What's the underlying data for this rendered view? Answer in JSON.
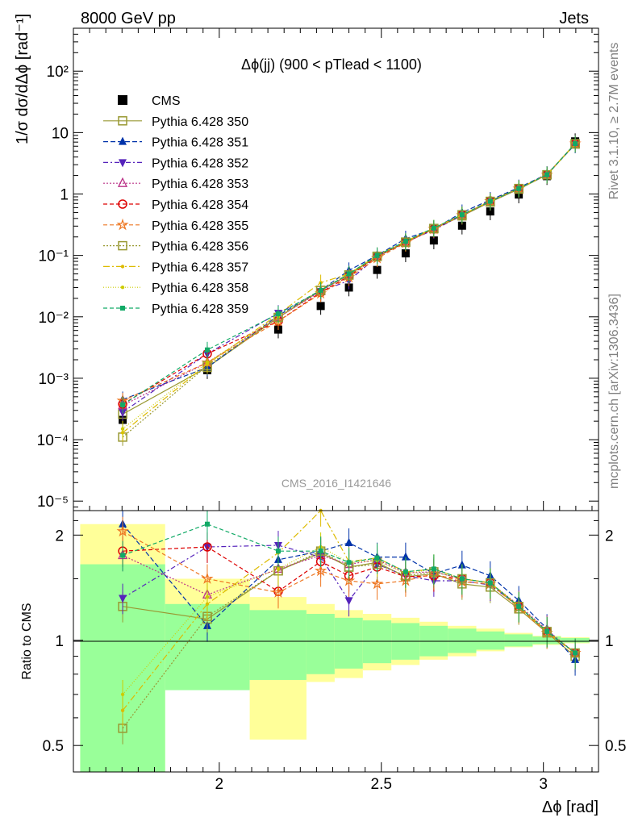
{
  "header": {
    "left": "8000 GeV pp",
    "right": "Jets",
    "side_top": "Rivet 3.1.10, ≥ 2.7M events",
    "side_bottom": "mcplots.cern.ch [arXiv:1306.3436]"
  },
  "chart_data": [
    {
      "type": "scatter",
      "panel": "main",
      "title": "Δϕ(jj) (900 < pTlead <  1100)",
      "ylabel": "1/σ dσ/dΔϕ [rad⁻¹]",
      "xlabel": "Δϕ [rad]",
      "watermark": "CMS_2016_I1421646",
      "yscale": "log",
      "ylim": [
        7e-06,
        500
      ],
      "xlim": [
        1.55,
        3.17
      ],
      "ytick_labels": [
        "10⁻⁵",
        "10⁻⁴",
        "10⁻³",
        "10⁻²",
        "10⁻¹",
        "1",
        "10",
        "10²"
      ],
      "legend_position": "top-left",
      "x": [
        1.702,
        1.963,
        2.182,
        2.313,
        2.4,
        2.487,
        2.575,
        2.662,
        2.749,
        2.836,
        2.924,
        3.011,
        3.098
      ],
      "series": [
        {
          "name": "CMS",
          "color": "#000000",
          "marker": "square-filled",
          "values": [
            0.00021,
            0.00135,
            0.0062,
            0.015,
            0.03,
            0.058,
            0.108,
            0.175,
            0.305,
            0.52,
            0.98,
            1.95,
            7.2
          ]
        },
        {
          "name": "Pythia 6.428 350",
          "color": "#999933",
          "marker": "square-open",
          "dash": "solid",
          "values": [
            0.00026,
            0.0015,
            0.0097,
            0.027,
            0.048,
            0.097,
            0.163,
            0.272,
            0.44,
            0.74,
            1.2,
            2.05,
            6.5
          ]
        },
        {
          "name": "Pythia 6.428 351",
          "color": "#0033aa",
          "marker": "triangle-up",
          "dash": "6,3",
          "values": [
            0.00045,
            0.0015,
            0.0105,
            0.027,
            0.057,
            0.1,
            0.187,
            0.27,
            0.5,
            0.8,
            1.27,
            2.1,
            6.4
          ]
        },
        {
          "name": "Pythia 6.428 352",
          "color": "#5522bb",
          "marker": "triangle-down",
          "dash": "6,3,2,3",
          "values": [
            0.00028,
            0.0025,
            0.0115,
            0.026,
            0.039,
            0.095,
            0.165,
            0.26,
            0.45,
            0.75,
            1.22,
            2.05,
            6.6
          ]
        },
        {
          "name": "Pythia 6.428 353",
          "color": "#bb3388",
          "marker": "triangle-open",
          "dash": "2,2",
          "values": [
            0.00036,
            0.0018,
            0.0098,
            0.026,
            0.05,
            0.098,
            0.168,
            0.275,
            0.46,
            0.76,
            1.23,
            2.07,
            6.6
          ]
        },
        {
          "name": "Pythia 6.428 354",
          "color": "#dd0000",
          "marker": "circle-open",
          "dash": "5,3",
          "values": [
            0.00038,
            0.0025,
            0.0085,
            0.025,
            0.046,
            0.095,
            0.165,
            0.27,
            0.46,
            0.77,
            1.23,
            2.06,
            6.6
          ]
        },
        {
          "name": "Pythia 6.428 355",
          "color": "#ee7722",
          "marker": "star",
          "dash": "5,3",
          "values": [
            0.00043,
            0.0018,
            0.0085,
            0.024,
            0.044,
            0.09,
            0.16,
            0.27,
            0.45,
            0.76,
            1.22,
            2.05,
            6.6
          ]
        },
        {
          "name": "Pythia 6.428 356",
          "color": "#999933",
          "marker": "square-open",
          "dash": "2,2",
          "values": [
            0.00011,
            0.0016,
            0.0098,
            0.027,
            0.048,
            0.096,
            0.165,
            0.275,
            0.46,
            0.76,
            1.23,
            2.06,
            6.6
          ]
        },
        {
          "name": "Pythia 6.428 357",
          "color": "#ddbb00",
          "marker": "dot",
          "dash": "8,3,2,3",
          "values": [
            0.00013,
            0.0017,
            0.011,
            0.036,
            0.05,
            0.1,
            0.17,
            0.28,
            0.46,
            0.76,
            1.23,
            2.06,
            6.6
          ]
        },
        {
          "name": "Pythia 6.428 358",
          "color": "#cccc00",
          "marker": "dot",
          "dash": "1,2",
          "values": [
            0.00015,
            0.0018,
            0.01,
            0.028,
            0.05,
            0.098,
            0.168,
            0.28,
            0.46,
            0.76,
            1.23,
            2.06,
            6.6
          ]
        },
        {
          "name": "Pythia 6.428 359",
          "color": "#11aa66",
          "marker": "square-filled-small",
          "dash": "5,3",
          "values": [
            0.00037,
            0.0029,
            0.0112,
            0.027,
            0.05,
            0.1,
            0.17,
            0.28,
            0.46,
            0.76,
            1.23,
            2.06,
            6.6
          ]
        }
      ]
    },
    {
      "type": "scatter",
      "panel": "ratio",
      "ylabel": "Ratio to CMS",
      "xlabel": "Δϕ [rad]",
      "yscale": "log",
      "ylim": [
        0.42,
        2.35
      ],
      "xlim": [
        1.55,
        3.17
      ],
      "ytick_labels": [
        "0.5",
        "1",
        "2"
      ],
      "xtick_labels": [
        "2",
        "2.5",
        "3"
      ],
      "reference_line": 1,
      "bands": {
        "edges": [
          1.571,
          1.833,
          2.094,
          2.269,
          2.356,
          2.443,
          2.531,
          2.618,
          2.705,
          2.793,
          2.88,
          2.967,
          3.054,
          3.142
        ],
        "green_low": [
          0.35,
          0.72,
          0.77,
          0.8,
          0.83,
          0.86,
          0.88,
          0.9,
          0.92,
          0.94,
          0.96,
          0.975,
          0.985
        ],
        "green_high": [
          1.65,
          1.27,
          1.22,
          1.19,
          1.16,
          1.14,
          1.12,
          1.1,
          1.08,
          1.06,
          1.04,
          1.025,
          1.015
        ],
        "yellow_low": [
          0.35,
          0.8,
          0.52,
          0.76,
          0.78,
          0.82,
          0.85,
          0.88,
          0.9,
          0.93,
          0.955,
          0.97,
          0.98
        ],
        "yellow_high": [
          2.15,
          1.5,
          1.33,
          1.27,
          1.22,
          1.19,
          1.16,
          1.13,
          1.1,
          1.08,
          1.05,
          1.03,
          1.02
        ]
      },
      "x": [
        1.702,
        1.963,
        2.182,
        2.313,
        2.4,
        2.487,
        2.575,
        2.662,
        2.749,
        2.836,
        2.924,
        3.011,
        3.098
      ],
      "series": [
        {
          "name": "Pythia 6.428 350",
          "values": [
            1.25,
            1.15,
            1.58,
            1.78,
            1.62,
            1.67,
            1.52,
            1.55,
            1.45,
            1.42,
            1.23,
            1.05,
            0.9
          ]
        },
        {
          "name": "Pythia 6.428 351",
          "values": [
            2.15,
            1.1,
            1.7,
            1.8,
            1.9,
            1.73,
            1.73,
            1.55,
            1.64,
            1.53,
            1.3,
            1.08,
            0.88
          ]
        },
        {
          "name": "Pythia 6.428 352",
          "values": [
            1.32,
            1.85,
            1.87,
            1.73,
            1.3,
            1.65,
            1.53,
            1.48,
            1.48,
            1.44,
            1.25,
            1.06,
            0.92
          ]
        },
        {
          "name": "Pythia 6.428 353",
          "values": [
            1.75,
            1.35,
            1.6,
            1.75,
            1.65,
            1.7,
            1.56,
            1.57,
            1.5,
            1.46,
            1.26,
            1.07,
            0.92
          ]
        },
        {
          "name": "Pythia 6.428 354",
          "values": [
            1.8,
            1.85,
            1.38,
            1.68,
            1.53,
            1.62,
            1.52,
            1.53,
            1.5,
            1.46,
            1.25,
            1.06,
            0.92
          ]
        },
        {
          "name": "Pythia 6.428 355",
          "values": [
            2.05,
            1.5,
            1.37,
            1.58,
            1.48,
            1.45,
            1.48,
            1.55,
            1.47,
            1.45,
            1.24,
            1.05,
            0.92
          ]
        },
        {
          "name": "Pythia 6.428 356",
          "values": [
            0.56,
            1.17,
            1.58,
            1.8,
            1.62,
            1.65,
            1.53,
            1.57,
            1.5,
            1.46,
            1.25,
            1.06,
            0.92
          ]
        },
        {
          "name": "Pythia 6.428 357",
          "values": [
            0.63,
            1.27,
            1.78,
            2.35,
            1.68,
            1.72,
            1.57,
            1.6,
            1.5,
            1.46,
            1.25,
            1.06,
            0.92
          ]
        },
        {
          "name": "Pythia 6.428 358",
          "values": [
            0.7,
            1.33,
            1.6,
            1.85,
            1.67,
            1.69,
            1.55,
            1.6,
            1.5,
            1.46,
            1.25,
            1.06,
            0.92
          ]
        },
        {
          "name": "Pythia 6.428 359",
          "values": [
            1.75,
            2.15,
            1.8,
            1.8,
            1.67,
            1.72,
            1.57,
            1.6,
            1.5,
            1.46,
            1.25,
            1.06,
            0.92
          ]
        }
      ]
    }
  ]
}
